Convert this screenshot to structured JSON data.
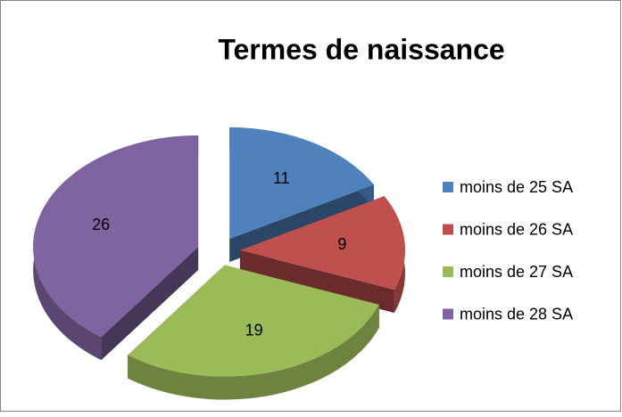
{
  "chart_data": {
    "type": "pie",
    "title": "Termes de naissance",
    "categories": [
      "moins de 25 SA",
      "moins de 26 SA",
      "moins de 27 SA",
      "moins de 28 SA"
    ],
    "values": [
      11,
      9,
      19,
      26
    ],
    "colors": [
      "#4f81bd",
      "#c0504d",
      "#9bbb59",
      "#8064a2"
    ],
    "legend": "right"
  }
}
